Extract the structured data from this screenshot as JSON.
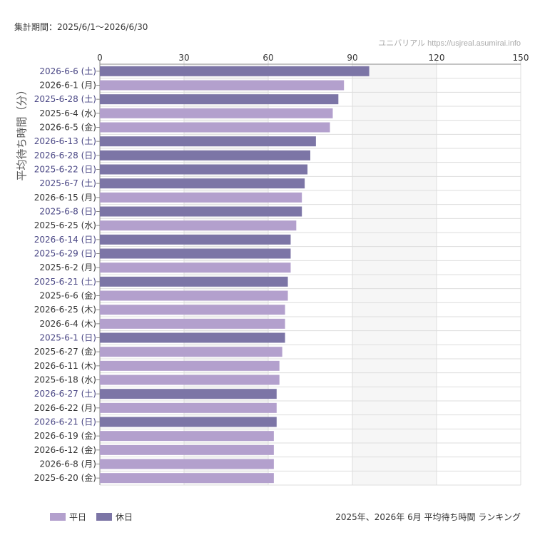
{
  "header": {
    "period": "集計期間：2025/6/1～2026/6/30",
    "watermark": "ユニバリアル  https://usjreal.asumirai.info"
  },
  "footer": {
    "title": "2025年、2026年 6月 平均待ち時間 ランキング"
  },
  "colors": {
    "weekday": "#b3a0cd",
    "holiday": "#7c75a6",
    "weekday_label": "#333333",
    "holiday_label": "#4a4785",
    "grid": "#dddddd"
  },
  "chart_data": {
    "type": "bar",
    "orientation": "horizontal",
    "title": "2025年、2026年 6月 平均待ち時間 ランキング",
    "ylabel": "平均待ち時間（分）",
    "xlim": [
      0,
      150
    ],
    "xticks": [
      0,
      30,
      60,
      90,
      120,
      150
    ],
    "grid": true,
    "legend_position": "bottom-left",
    "legend": [
      {
        "key": "weekday",
        "label": "平日"
      },
      {
        "key": "holiday",
        "label": "休日"
      }
    ],
    "categories": [
      "2026-6-6 (土)",
      "2026-6-1 (月)",
      "2025-6-28 (土)",
      "2025-6-4 (水)",
      "2026-6-5 (金)",
      "2026-6-13 (土)",
      "2026-6-28 (日)",
      "2025-6-22 (日)",
      "2025-6-7 (土)",
      "2026-6-15 (月)",
      "2025-6-8 (日)",
      "2025-6-25 (水)",
      "2026-6-14 (日)",
      "2025-6-29 (日)",
      "2025-6-2 (月)",
      "2025-6-21 (土)",
      "2025-6-6 (金)",
      "2026-6-25 (木)",
      "2026-6-4 (木)",
      "2025-6-1 (日)",
      "2025-6-27 (金)",
      "2026-6-11 (木)",
      "2025-6-18 (水)",
      "2026-6-27 (土)",
      "2026-6-22 (月)",
      "2026-6-21 (日)",
      "2026-6-19 (金)",
      "2026-6-12 (金)",
      "2026-6-8 (月)",
      "2025-6-20 (金)"
    ],
    "values": [
      96,
      87,
      85,
      83,
      82,
      77,
      75,
      74,
      73,
      72,
      72,
      70,
      68,
      68,
      68,
      67,
      67,
      66,
      66,
      66,
      65,
      64,
      64,
      63,
      63,
      63,
      62,
      62,
      62,
      62
    ],
    "day_type": [
      "holiday",
      "weekday",
      "holiday",
      "weekday",
      "weekday",
      "holiday",
      "holiday",
      "holiday",
      "holiday",
      "weekday",
      "holiday",
      "weekday",
      "holiday",
      "holiday",
      "weekday",
      "holiday",
      "weekday",
      "weekday",
      "weekday",
      "holiday",
      "weekday",
      "weekday",
      "weekday",
      "holiday",
      "weekday",
      "holiday",
      "weekday",
      "weekday",
      "weekday",
      "weekday"
    ]
  }
}
